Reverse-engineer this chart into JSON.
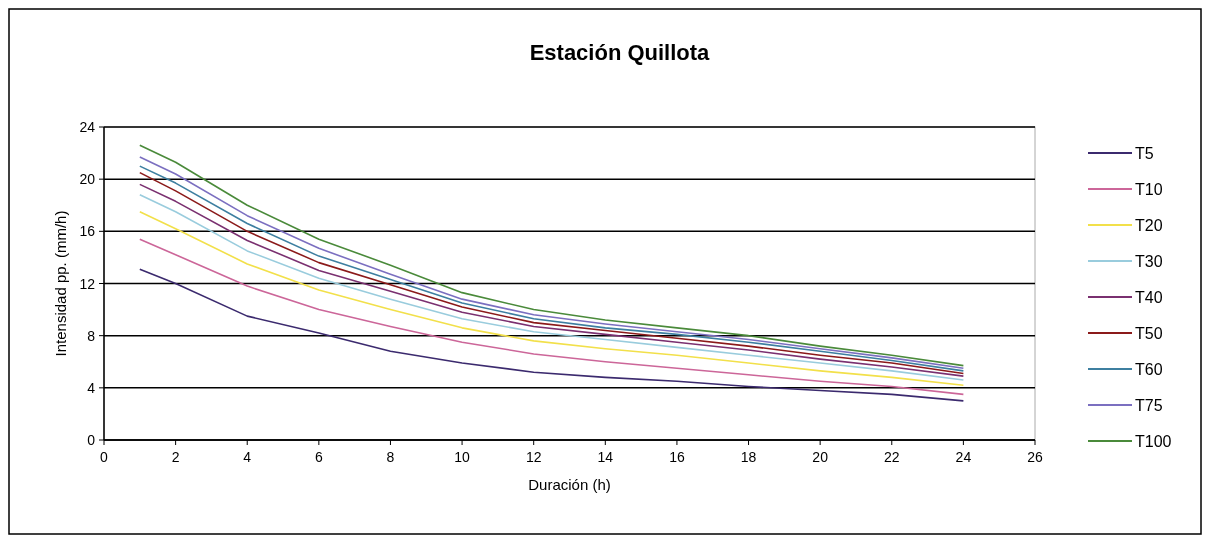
{
  "chart_data": {
    "type": "line",
    "title": "Estación Quillota",
    "xlabel": "Duración (h)",
    "ylabel": "Intensidad pp. (mm/h)",
    "x": [
      1,
      2,
      4,
      6,
      8,
      10,
      12,
      14,
      16,
      18,
      20,
      22,
      24
    ],
    "xlim": [
      0,
      26
    ],
    "xticks": [
      0,
      2,
      4,
      6,
      8,
      10,
      12,
      14,
      16,
      18,
      20,
      22,
      24,
      26
    ],
    "ylim": [
      0,
      24
    ],
    "yticks": [
      0,
      4,
      8,
      12,
      16,
      20,
      24
    ],
    "grid": "y",
    "legend": "right",
    "marker": "none",
    "line_style": "solid",
    "series": [
      {
        "name": "T5",
        "color": "#3b2a6e",
        "values": [
          13.1,
          12.0,
          9.5,
          8.2,
          6.8,
          5.9,
          5.2,
          4.8,
          4.5,
          4.1,
          3.8,
          3.5,
          3.0
        ]
      },
      {
        "name": "T10",
        "color": "#cc6699",
        "values": [
          15.4,
          14.2,
          11.8,
          10.0,
          8.7,
          7.5,
          6.6,
          6.0,
          5.5,
          5.0,
          4.5,
          4.1,
          3.5
        ]
      },
      {
        "name": "T20",
        "color": "#f2e04a",
        "values": [
          17.5,
          16.2,
          13.5,
          11.5,
          10.0,
          8.6,
          7.6,
          7.0,
          6.5,
          5.9,
          5.3,
          4.8,
          4.2
        ]
      },
      {
        "name": "T30",
        "color": "#99ccdd",
        "values": [
          18.8,
          17.5,
          14.5,
          12.4,
          10.8,
          9.3,
          8.3,
          7.7,
          7.1,
          6.5,
          5.9,
          5.3,
          4.6
        ]
      },
      {
        "name": "T40",
        "color": "#7a3070",
        "values": [
          19.6,
          18.3,
          15.3,
          13.0,
          11.4,
          9.8,
          8.7,
          8.1,
          7.5,
          6.9,
          6.2,
          5.6,
          4.9
        ]
      },
      {
        "name": "T50",
        "color": "#8b1a1a",
        "values": [
          20.5,
          19.1,
          16.0,
          13.6,
          11.9,
          10.2,
          9.0,
          8.4,
          7.8,
          7.2,
          6.5,
          5.9,
          5.1
        ]
      },
      {
        "name": "T60",
        "color": "#3d7fa0",
        "values": [
          21.0,
          19.7,
          16.6,
          14.1,
          12.3,
          10.5,
          9.3,
          8.6,
          8.1,
          7.5,
          6.8,
          6.1,
          5.3
        ]
      },
      {
        "name": "T75",
        "color": "#7b6fc0",
        "values": [
          21.7,
          20.4,
          17.2,
          14.7,
          12.7,
          10.8,
          9.6,
          8.9,
          8.3,
          7.7,
          7.0,
          6.3,
          5.5
        ]
      },
      {
        "name": "T100",
        "color": "#4a8a3a",
        "values": [
          22.6,
          21.3,
          18.0,
          15.4,
          13.4,
          11.3,
          10.0,
          9.2,
          8.6,
          8.0,
          7.2,
          6.5,
          5.7
        ]
      }
    ]
  }
}
